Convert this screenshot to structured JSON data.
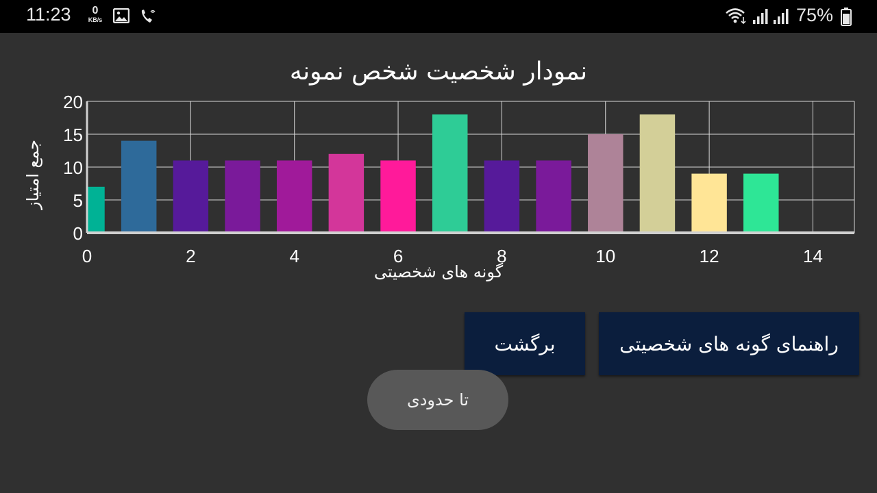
{
  "status_bar": {
    "time": "11:23",
    "net_speed_value": "0",
    "net_speed_unit": "KB/s",
    "battery_percent": "75%",
    "icons": [
      "gallery-icon",
      "wifi-call-icon",
      "wifi-icon",
      "signal-icon",
      "signal-icon",
      "battery-icon"
    ]
  },
  "chart_data": {
    "type": "bar",
    "title": "نمودار شخصیت شخص نمونه",
    "xlabel": "گونه های شخصیتی",
    "ylabel": "جمع امتیاز",
    "x": [
      0,
      1,
      2,
      3,
      4,
      5,
      6,
      7,
      8,
      9,
      10,
      11,
      12,
      13
    ],
    "values": [
      7,
      14,
      11,
      11,
      11,
      12,
      11,
      18,
      11,
      11,
      15,
      18,
      9,
      9
    ],
    "colors": [
      "#00b295",
      "#2e6a9a",
      "#561a9a",
      "#7a1a9a",
      "#a01a9a",
      "#d3369a",
      "#ff1a9a",
      "#2ecc96",
      "#561a9a",
      "#7a1a9a",
      "#ae8398",
      "#d3cf98",
      "#ffe596",
      "#2ee696"
    ],
    "xlim": [
      0,
      14.8
    ],
    "ylim": [
      0,
      20
    ],
    "x_ticks": [
      "0",
      "2",
      "4",
      "6",
      "8",
      "10",
      "12",
      "14"
    ],
    "y_ticks": [
      "0",
      "5",
      "10",
      "15",
      "20"
    ],
    "grid": true,
    "grid_color": "#d9d9d9",
    "axis_color": "#d0d0d0"
  },
  "buttons": {
    "back_label": "برگشت",
    "guide_label": "راهنمای گونه های شخصیتی"
  },
  "toast": {
    "text": "تا حدودی"
  },
  "colors": {
    "background": "#303030",
    "button_bg": "#0b1e3d",
    "toast_bg": "#585858"
  }
}
